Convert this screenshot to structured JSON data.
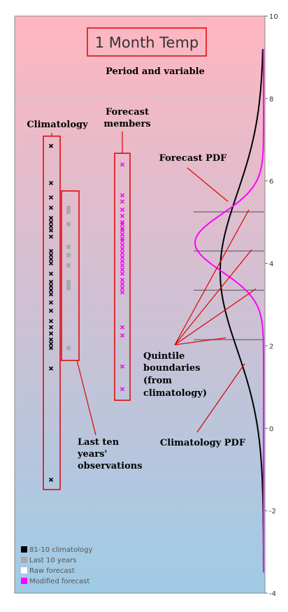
{
  "chart_data": {
    "type": "scatter",
    "title": "1 Month Temp",
    "ylim": [
      -4,
      10
    ],
    "yticks": [
      -4,
      -2,
      0,
      2,
      4,
      6,
      8,
      10
    ],
    "grid": true,
    "climatology": [
      6.85,
      5.95,
      5.6,
      5.35,
      5.1,
      5.0,
      4.9,
      4.8,
      4.65,
      4.3,
      4.2,
      4.1,
      4.0,
      3.75,
      3.55,
      3.45,
      3.35,
      3.25,
      3.05,
      2.85,
      2.6,
      2.45,
      2.3,
      2.15,
      2.05,
      1.95,
      1.45,
      -1.25
    ],
    "last_ten_years": [
      5.35,
      5.25,
      4.95,
      4.4,
      4.2,
      3.95,
      3.55,
      3.45,
      3.4,
      1.95
    ],
    "forecast_members": [
      6.4,
      5.65,
      5.5,
      5.3,
      5.15,
      5.0,
      4.95,
      4.85,
      4.8,
      4.7,
      4.6,
      4.55,
      4.45,
      4.35,
      4.25,
      4.15,
      4.05,
      3.95,
      3.85,
      3.75,
      3.6,
      3.5,
      3.4,
      3.3,
      2.45,
      2.25,
      1.5,
      0.95
    ],
    "quintile_boundaries": [
      2.15,
      3.35,
      4.3,
      5.25
    ],
    "climatology_pdf": {
      "mean": 3.8,
      "sd": 1.9,
      "color": "#000000"
    },
    "forecast_pdf": {
      "mean": 4.5,
      "sd": 0.7,
      "color": "#ff00ff"
    },
    "legend": [
      {
        "label": "81-10 climatology",
        "color": "#000000"
      },
      {
        "label": "Last 10 years",
        "color": "#aaaaaa"
      },
      {
        "label": "Raw forecast",
        "color": "#ffffff"
      },
      {
        "label": "Modified forecast",
        "color": "#ff00ff"
      }
    ],
    "legend_position": "bottom-left",
    "annotations": {
      "period": "Period and variable",
      "climatology": "Climatology",
      "forecast_members": [
        "Forecast",
        "members"
      ],
      "forecast_pdf": "Forecast PDF",
      "quintile": [
        "Quintile",
        "boundaries",
        "(from",
        "climatology)"
      ],
      "last_ten": [
        "Last ten",
        "years'",
        "observations"
      ],
      "climatology_pdf": "Climatology PDF"
    },
    "colors": {
      "top": "#ffb6c1",
      "bottom": "#9fcbe6",
      "annotation": "#e00000",
      "quintile_line": "#777777"
    }
  }
}
